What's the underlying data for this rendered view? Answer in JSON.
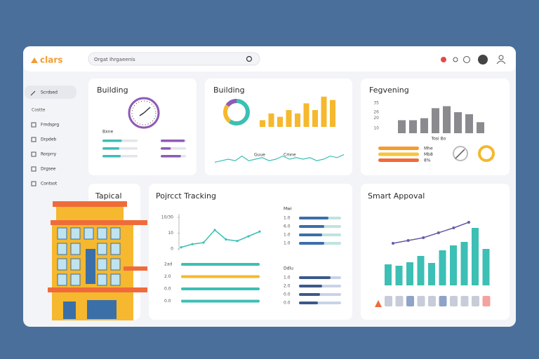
{
  "header": {
    "logo": "clars",
    "search": "Orgat Ihrgaeenis"
  },
  "sidebar": {
    "active": "Scrdsed",
    "section": "Costte",
    "items": [
      "Fmdsprg",
      "Drpdeb",
      "Rorprry",
      "Drgsee",
      "Contsot"
    ]
  },
  "building_card": {
    "title": "Building",
    "label": "Bxne",
    "left": [
      {
        "value": 55,
        "color": "#3cbfb4"
      },
      {
        "value": 48,
        "color": "#3cbfb4"
      },
      {
        "value": 52,
        "color": "#3cbfb4"
      }
    ],
    "right": [
      {
        "value": 95,
        "color": "#8e5bb5"
      },
      {
        "value": 40,
        "color": "#8e5bb5"
      },
      {
        "value": 80,
        "color": "#8e5bb5"
      }
    ]
  },
  "activity_card": {
    "title": "Building",
    "donut": [
      {
        "value": 60,
        "color": "#3cbfb4"
      },
      {
        "value": 25,
        "color": "#f5b82e"
      },
      {
        "value": 15,
        "color": "#8e5bb5"
      }
    ],
    "bars": {
      "color": "#f5b82e",
      "values": [
        2,
        4,
        3,
        5,
        4,
        7,
        5,
        9,
        8
      ]
    },
    "legend": [
      "Guue",
      "Cmne"
    ],
    "line": {
      "color": "#3cbfb4",
      "values": [
        3,
        4,
        5,
        4,
        7,
        4,
        5,
        6,
        4,
        5,
        7,
        5,
        6,
        5,
        6,
        4,
        5,
        7,
        6,
        8
      ]
    }
  },
  "forecast_card": {
    "title": "Fegvening",
    "xlabel": "Tosi Bo",
    "ylim": [
      5,
      40
    ],
    "yticks": [
      10,
      20,
      26,
      35
    ],
    "bars": {
      "color": "#8a8a8f",
      "values": [
        18,
        18,
        20,
        30,
        32,
        26,
        24,
        16
      ]
    },
    "progress": [
      {
        "value": 100,
        "label": "Mhe",
        "color": "#f39c34"
      },
      {
        "value": 100,
        "label": "Mb8",
        "color": "#f5c542"
      },
      {
        "value": 100,
        "label": "8%",
        "color": "#ef6b3a"
      }
    ]
  },
  "topical_card": {
    "title": "Tapical"
  },
  "tracking_card": {
    "title": "Pojrcct Tracking",
    "line": {
      "color": "#3cbfb4",
      "ylim": [
        0,
        20
      ],
      "yticks": [
        0,
        10,
        {
          "value": 20,
          "label": "10/30"
        }
      ],
      "values": [
        1,
        3,
        4,
        12,
        6,
        5,
        8,
        11
      ]
    },
    "bars": [
      {
        "label": "2ad",
        "value": 100,
        "color": "#3cbfb4"
      },
      {
        "label": "2.0",
        "value": 100,
        "color": "#f5b82e"
      },
      {
        "label": "0.0",
        "value": 100,
        "color": "#3cbfb4"
      },
      {
        "label": "0.0",
        "value": 100,
        "color": "#3cbfb4"
      }
    ],
    "group_a": {
      "title": "Mwi",
      "rows": [
        {
          "label": "1.0",
          "value": 70
        },
        {
          "label": "6.0",
          "value": 60
        },
        {
          "label": "1.0",
          "value": 55
        },
        {
          "label": "1.0",
          "value": 60
        }
      ]
    },
    "group_b": {
      "title": "Ddlu",
      "rows": [
        {
          "label": "1.0",
          "value": 75
        },
        {
          "label": "2.0",
          "value": 55
        },
        {
          "label": "0.0",
          "value": 50
        },
        {
          "label": "0.0",
          "value": 45
        }
      ]
    }
  },
  "approval_card": {
    "title": "Smart Appoval",
    "bars": {
      "color": "#3cbfb4",
      "values": [
        30,
        28,
        33,
        42,
        32,
        50,
        57,
        62,
        82,
        52
      ]
    },
    "line": {
      "color": "#6b5ba6",
      "values": [
        10,
        14,
        18,
        25,
        32,
        40
      ]
    }
  }
}
